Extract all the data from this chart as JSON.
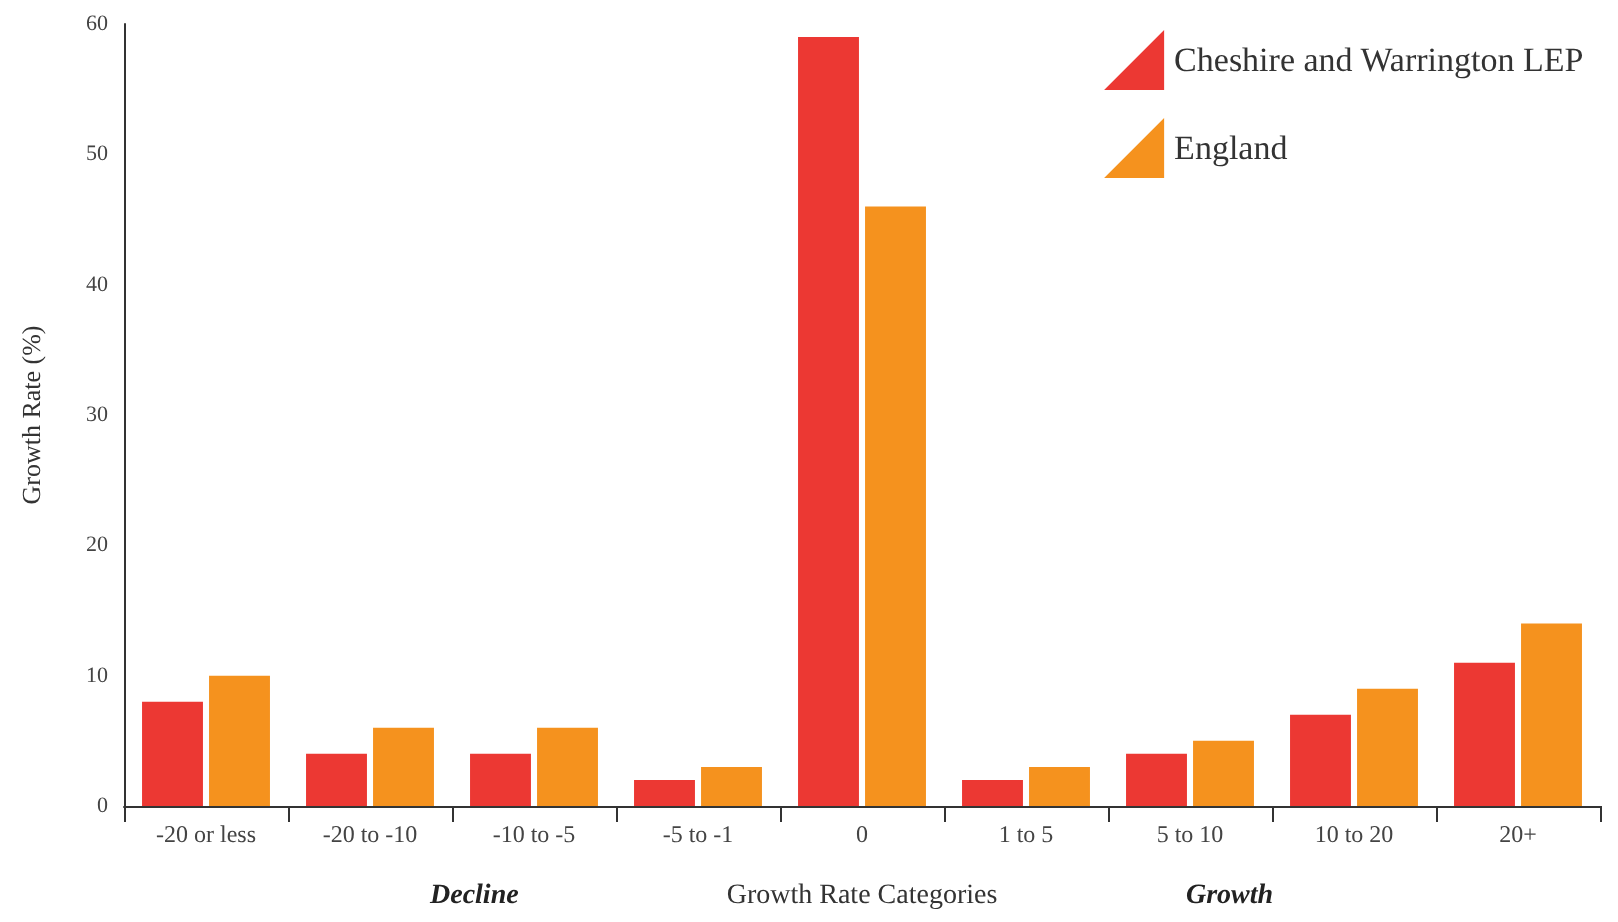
{
  "chart_data": {
    "type": "bar",
    "xlabel": "Growth Rate Categories",
    "ylabel": "Growth Rate (%)",
    "categories": [
      "-20 or less",
      "-20 to -10",
      "-10 to -5",
      "-5 to -1",
      "0",
      "1 to 5",
      "5 to 10",
      "10 to 20",
      "20+"
    ],
    "series": [
      {
        "name": "Cheshire and Warrington LEP",
        "color": "#ec3833",
        "values": [
          8,
          4,
          4,
          2,
          59,
          2,
          4,
          7,
          11
        ]
      },
      {
        "name": "England",
        "color": "#f5921e",
        "values": [
          10,
          6,
          6,
          3,
          46,
          3,
          5,
          9,
          14
        ]
      }
    ],
    "ylim": [
      0,
      60
    ],
    "yticks": [
      0,
      10,
      20,
      30,
      40,
      50,
      60
    ],
    "grid": false,
    "legend": "top right",
    "annotations": [
      "Decline",
      "Growth"
    ]
  }
}
